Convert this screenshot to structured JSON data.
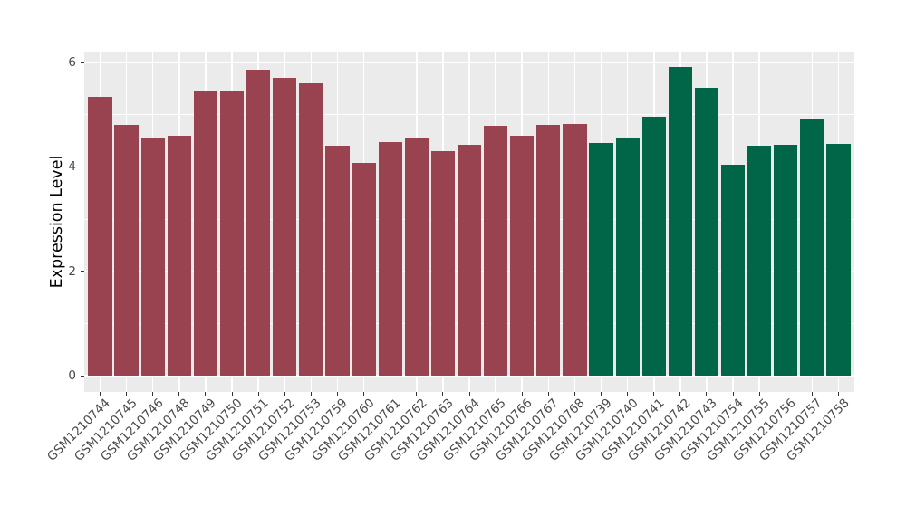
{
  "chart_data": {
    "type": "bar",
    "title": "",
    "xlabel": "",
    "ylabel": "Expression Level",
    "ylim": [
      0,
      6.2
    ],
    "yticks": [
      0,
      2,
      4,
      6
    ],
    "yticks_minor": [
      1,
      3,
      5
    ],
    "grid": true,
    "legend": "none",
    "bars": [
      {
        "label": "GSM1210744",
        "value": 5.34,
        "group": "red"
      },
      {
        "label": "GSM1210745",
        "value": 4.81,
        "group": "red"
      },
      {
        "label": "GSM1210746",
        "value": 4.57,
        "group": "red"
      },
      {
        "label": "GSM1210748",
        "value": 4.6,
        "group": "red"
      },
      {
        "label": "GSM1210749",
        "value": 5.46,
        "group": "red"
      },
      {
        "label": "GSM1210750",
        "value": 5.46,
        "group": "red"
      },
      {
        "label": "GSM1210751",
        "value": 5.86,
        "group": "red"
      },
      {
        "label": "GSM1210752",
        "value": 5.71,
        "group": "red"
      },
      {
        "label": "GSM1210753",
        "value": 5.6,
        "group": "red"
      },
      {
        "label": "GSM1210759",
        "value": 4.41,
        "group": "red"
      },
      {
        "label": "GSM1210760",
        "value": 4.07,
        "group": "red"
      },
      {
        "label": "GSM1210761",
        "value": 4.47,
        "group": "red"
      },
      {
        "label": "GSM1210762",
        "value": 4.56,
        "group": "red"
      },
      {
        "label": "GSM1210763",
        "value": 4.31,
        "group": "red"
      },
      {
        "label": "GSM1210764",
        "value": 4.42,
        "group": "red"
      },
      {
        "label": "GSM1210765",
        "value": 4.78,
        "group": "red"
      },
      {
        "label": "GSM1210766",
        "value": 4.6,
        "group": "red"
      },
      {
        "label": "GSM1210767",
        "value": 4.8,
        "group": "red"
      },
      {
        "label": "GSM1210768",
        "value": 4.82,
        "group": "red"
      },
      {
        "label": "GSM1210739",
        "value": 4.46,
        "group": "green"
      },
      {
        "label": "GSM1210740",
        "value": 4.55,
        "group": "green"
      },
      {
        "label": "GSM1210741",
        "value": 4.96,
        "group": "green"
      },
      {
        "label": "GSM1210742",
        "value": 5.91,
        "group": "green"
      },
      {
        "label": "GSM1210743",
        "value": 5.52,
        "group": "green"
      },
      {
        "label": "GSM1210754",
        "value": 4.05,
        "group": "green"
      },
      {
        "label": "GSM1210755",
        "value": 4.4,
        "group": "green"
      },
      {
        "label": "GSM1210756",
        "value": 4.42,
        "group": "green"
      },
      {
        "label": "GSM1210757",
        "value": 4.91,
        "group": "green"
      },
      {
        "label": "GSM1210758",
        "value": 4.44,
        "group": "green"
      }
    ],
    "group_colors": {
      "red": "#9A4350",
      "green": "#006647"
    },
    "style_colors": {
      "panel_background": "#EBEBEB",
      "gridline": "#FFFFFF",
      "tick_mark": "#333333",
      "tick_label": "#4A4A4A",
      "axis_title": "#000000",
      "figure_background": "#FFFFFF"
    }
  }
}
